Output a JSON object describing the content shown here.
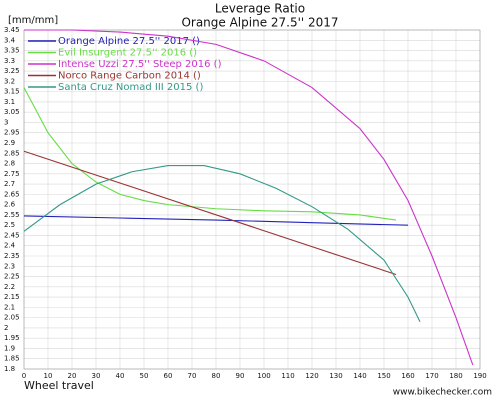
{
  "chart_data": {
    "type": "line",
    "title": "Leverage Ratio",
    "subtitle": "Orange Alpine 27.5'' 2017",
    "y_label": "[mm/mm]",
    "x_label": "Wheel travel",
    "watermark": "www.bikechecker.com",
    "xlim": [
      0,
      190
    ],
    "xticks": [
      0,
      10,
      20,
      30,
      40,
      50,
      60,
      70,
      80,
      90,
      100,
      110,
      120,
      130,
      140,
      150,
      160,
      170,
      180,
      190
    ],
    "ylim": [
      1.8,
      3.45
    ],
    "yticks": [
      1.8,
      1.85,
      1.9,
      1.95,
      2,
      2.05,
      2.1,
      2.15,
      2.2,
      2.25,
      2.3,
      2.35,
      2.4,
      2.45,
      2.5,
      2.55,
      2.6,
      2.65,
      2.7,
      2.75,
      2.8,
      2.85,
      2.9,
      2.95,
      3,
      3.05,
      3.1,
      3.15,
      3.2,
      3.25,
      3.3,
      3.35,
      3.4,
      3.45
    ],
    "grid": true,
    "legend": "top-left",
    "series": [
      {
        "name": "Orange Alpine 27.5'' 2017 ()",
        "color": "#2222bb",
        "x": [
          0,
          40,
          80,
          120,
          160
        ],
        "values": [
          2.545,
          2.535,
          2.525,
          2.512,
          2.5
        ]
      },
      {
        "name": "Evil Insurgent 27.5'' 2016 ()",
        "color": "#66dd44",
        "x": [
          0,
          10,
          20,
          30,
          40,
          50,
          60,
          80,
          100,
          120,
          140,
          155
        ],
        "values": [
          3.17,
          2.95,
          2.8,
          2.71,
          2.65,
          2.62,
          2.6,
          2.58,
          2.57,
          2.565,
          2.55,
          2.525
        ]
      },
      {
        "name": "Intense Uzzi 27.5'' Steep 2016 ()",
        "color": "#cc33cc",
        "x": [
          0,
          20,
          40,
          60,
          80,
          100,
          120,
          140,
          150,
          160,
          170,
          180,
          187
        ],
        "values": [
          3.45,
          3.45,
          3.44,
          3.42,
          3.38,
          3.3,
          3.17,
          2.97,
          2.82,
          2.62,
          2.35,
          2.05,
          1.82
        ]
      },
      {
        "name": "Norco Range Carbon 2014 ()",
        "color": "#993333",
        "x": [
          0,
          155
        ],
        "values": [
          2.86,
          2.26
        ]
      },
      {
        "name": "Santa Cruz Nomad III 2015 ()",
        "color": "#339988",
        "x": [
          0,
          15,
          30,
          45,
          60,
          75,
          90,
          105,
          120,
          135,
          150,
          160,
          165
        ],
        "values": [
          2.47,
          2.6,
          2.7,
          2.76,
          2.79,
          2.79,
          2.75,
          2.68,
          2.59,
          2.48,
          2.33,
          2.15,
          2.03
        ]
      }
    ]
  }
}
